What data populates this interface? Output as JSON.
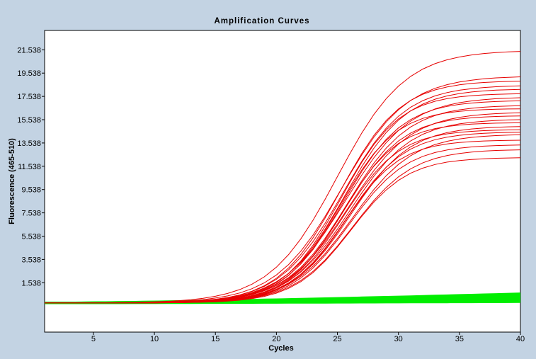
{
  "colors": {
    "background": "#c3d3e3",
    "plot_background": "#ffffff",
    "positive_curves": "#e60000",
    "negative_curves": "#00ee00",
    "axis": "#000000"
  },
  "chart_data": {
    "type": "line",
    "title": "Amplification Curves",
    "xlabel": "Cycles",
    "ylabel": "Fluorescence (465-510)",
    "xlim": [
      1,
      40
    ],
    "ylim": [
      -2.7,
      23.2
    ],
    "x_ticks": [
      5,
      10,
      15,
      20,
      25,
      30,
      35,
      40
    ],
    "y_ticks": [
      1.538,
      3.538,
      5.538,
      7.538,
      9.538,
      11.538,
      13.538,
      15.538,
      17.538,
      19.538,
      21.538
    ],
    "y_tick_labels": [
      "1.538",
      "3.538",
      "5.538",
      "7.538",
      "9.538",
      "11.538",
      "13.538",
      "15.538",
      "17.538",
      "19.538",
      "21.538"
    ],
    "grid": false,
    "legend": "none",
    "cycles": [
      1,
      2,
      3,
      4,
      5,
      6,
      7,
      8,
      9,
      10,
      11,
      12,
      13,
      14,
      15,
      16,
      17,
      18,
      19,
      20,
      21,
      22,
      23,
      24,
      25,
      26,
      27,
      28,
      29,
      30,
      31,
      32,
      33,
      34,
      35,
      36,
      37,
      38,
      39,
      40
    ],
    "baseline": -0.2,
    "amplified_series": [
      {
        "plateau": 21.5,
        "midpoint": 25.0,
        "slope": 0.36
      },
      {
        "plateau": 19.3,
        "midpoint": 25.3,
        "slope": 0.37
      },
      {
        "plateau": 18.9,
        "midpoint": 25.2,
        "slope": 0.4
      },
      {
        "plateau": 18.5,
        "midpoint": 25.4,
        "slope": 0.39
      },
      {
        "plateau": 18.2,
        "midpoint": 25.6,
        "slope": 0.4
      },
      {
        "plateau": 17.8,
        "midpoint": 25.3,
        "slope": 0.42
      },
      {
        "plateau": 17.5,
        "midpoint": 25.7,
        "slope": 0.38
      },
      {
        "plateau": 17.2,
        "midpoint": 25.5,
        "slope": 0.41
      },
      {
        "plateau": 16.8,
        "midpoint": 25.8,
        "slope": 0.4
      },
      {
        "plateau": 16.5,
        "midpoint": 25.2,
        "slope": 0.43
      },
      {
        "plateau": 16.2,
        "midpoint": 25.9,
        "slope": 0.39
      },
      {
        "plateau": 15.9,
        "midpoint": 25.6,
        "slope": 0.42
      },
      {
        "plateau": 15.6,
        "midpoint": 26.0,
        "slope": 0.4
      },
      {
        "plateau": 15.3,
        "midpoint": 25.4,
        "slope": 0.44
      },
      {
        "plateau": 15.0,
        "midpoint": 26.1,
        "slope": 0.41
      },
      {
        "plateau": 14.7,
        "midpoint": 25.5,
        "slope": 0.43
      },
      {
        "plateau": 14.5,
        "midpoint": 25.8,
        "slope": 0.42
      },
      {
        "plateau": 14.3,
        "midpoint": 26.2,
        "slope": 0.4
      },
      {
        "plateau": 13.8,
        "midpoint": 25.6,
        "slope": 0.44
      },
      {
        "plateau": 13.4,
        "midpoint": 26.0,
        "slope": 0.42
      },
      {
        "plateau": 13.0,
        "midpoint": 26.3,
        "slope": 0.41
      },
      {
        "plateau": 12.3,
        "midpoint": 26.1,
        "slope": 0.43
      }
    ],
    "negative_series": [
      {
        "start": -0.2,
        "end": 0.6
      },
      {
        "start": -0.2,
        "end": 0.5
      },
      {
        "start": -0.2,
        "end": 0.4
      },
      {
        "start": -0.2,
        "end": 0.3
      },
      {
        "start": -0.2,
        "end": 0.2
      },
      {
        "start": -0.2,
        "end": 0.1
      },
      {
        "start": -0.2,
        "end": 0.0
      },
      {
        "start": -0.2,
        "end": -0.1
      }
    ]
  }
}
